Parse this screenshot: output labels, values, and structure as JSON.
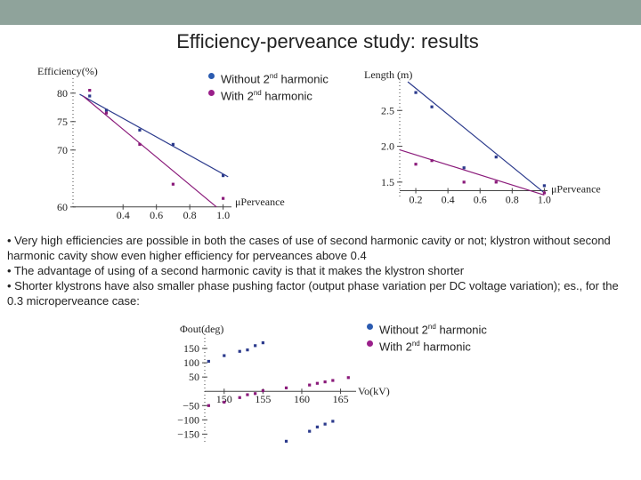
{
  "slide": {
    "title": "Efficiency-perveance study: results",
    "legend_top": {
      "without": "Without 2",
      "with": "With 2",
      "sup": "nd",
      "suffix": " harmonic"
    },
    "legend_bottom": {
      "without": "Without 2",
      "with": "With 2",
      "sup": "nd",
      "suffix": " harmonic"
    },
    "bullets": [
      "• Very high efficiencies are possible in both the cases of use of second harmonic cavity or not; klystron without second harmonic cavity show even higher efficiency for perveances above 0.4",
      "• The advantage of using of a second harmonic cavity is that it makes the klystron shorter",
      "• Shorter klystrons have also smaller phase pushing factor (output phase variation per DC voltage variation); es., for the 0.3 microperveance case:"
    ],
    "colors": {
      "without": "#2b3a8c",
      "with": "#8a1a7a",
      "topbar": "#8fa39b"
    }
  },
  "chart_data": [
    {
      "type": "scatter",
      "title": "",
      "xlabel": "μPerveance",
      "ylabel": "Efficiency(%)",
      "xlim": [
        0.1,
        1.05
      ],
      "ylim": [
        59.5,
        82
      ],
      "xticks": [
        "0.4",
        "0.6",
        "0.8",
        "1.0"
      ],
      "xtick_values": [
        0.4,
        0.6,
        0.8,
        1.0
      ],
      "yticks": [
        "80",
        "75",
        "70",
        "60"
      ],
      "ytick_values": [
        80,
        75,
        70,
        60
      ],
      "series": [
        {
          "name": "Without 2nd harmonic",
          "x": [
            0.2,
            0.3,
            0.5,
            0.7,
            1.0
          ],
          "y": [
            79.5,
            77,
            73.5,
            71,
            65.5
          ],
          "fit": [
            [
              0.14,
              79.8
            ],
            [
              1.03,
              65.3
            ]
          ]
        },
        {
          "name": "With 2nd harmonic",
          "x": [
            0.2,
            0.3,
            0.5,
            0.7,
            1.0
          ],
          "y": [
            80.5,
            76.5,
            71,
            64,
            61.5
          ],
          "fit": [
            [
              0.16,
              79.5
            ],
            [
              0.96,
              60
            ]
          ]
        }
      ]
    },
    {
      "type": "scatter",
      "title": "",
      "xlabel": "μPerveance",
      "ylabel": "Length (m)",
      "xlim": [
        0.1,
        1.02
      ],
      "ylim": [
        1.3,
        2.9
      ],
      "xticks": [
        "0.2",
        "0.4",
        "0.6",
        "0.8",
        "1.0"
      ],
      "xtick_values": [
        0.2,
        0.4,
        0.6,
        0.8,
        1.0
      ],
      "yticks": [
        "2.5",
        "2.0",
        "1.5"
      ],
      "ytick_values": [
        2.5,
        2.0,
        1.5
      ],
      "series": [
        {
          "name": "Without 2nd harmonic",
          "x": [
            0.2,
            0.3,
            0.5,
            0.7,
            1.0
          ],
          "y": [
            2.75,
            2.55,
            1.7,
            1.85,
            1.45
          ],
          "fit": [
            [
              0.15,
              2.9
            ],
            [
              1.0,
              1.35
            ]
          ]
        },
        {
          "name": "With 2nd harmonic",
          "x": [
            0.2,
            0.3,
            0.5,
            0.7,
            1.0
          ],
          "y": [
            1.75,
            1.8,
            1.5,
            1.5,
            1.35
          ],
          "fit": [
            [
              0.1,
              1.95
            ],
            [
              1.0,
              1.32
            ]
          ]
        }
      ]
    },
    {
      "type": "scatter",
      "title": "",
      "xlabel": "Vo(kV)",
      "ylabel": "Φout(deg)",
      "xlim": [
        147.5,
        167
      ],
      "ylim": [
        -180,
        200
      ],
      "xticks": [
        "150",
        "155",
        "160",
        "165"
      ],
      "xtick_values": [
        150,
        155,
        160,
        165
      ],
      "yticks": [
        "150",
        "100",
        "50",
        "−50",
        "−100",
        "−150"
      ],
      "ytick_values": [
        150,
        100,
        50,
        -50,
        -100,
        -150
      ],
      "series": [
        {
          "name": "Without 2nd harmonic",
          "x": [
            148,
            150,
            152,
            153,
            154,
            155,
            158,
            161,
            162,
            163,
            164
          ],
          "y": [
            105,
            125,
            140,
            145,
            160,
            170,
            -175,
            -140,
            -125,
            -115,
            -105
          ]
        },
        {
          "name": "With 2nd harmonic",
          "x": [
            148,
            150,
            152,
            153,
            154,
            155,
            158,
            161,
            162,
            163,
            164,
            166
          ],
          "y": [
            -50,
            -38,
            -22,
            -12,
            -8,
            2,
            12,
            22,
            28,
            33,
            38,
            48
          ]
        }
      ]
    }
  ]
}
